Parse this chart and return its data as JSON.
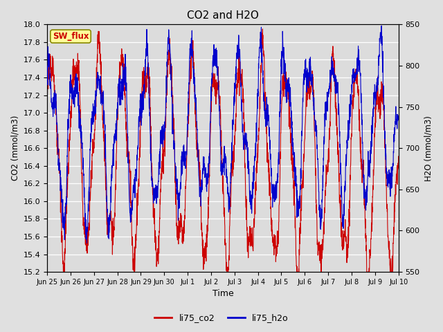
{
  "title": "CO2 and H2O",
  "xlabel": "Time",
  "ylabel_left": "CO2 (mmol/m3)",
  "ylabel_right": "H2O (mmol/m3)",
  "ylim_left": [
    15.2,
    18.0
  ],
  "ylim_right": [
    550,
    850
  ],
  "yticks_left": [
    15.2,
    15.4,
    15.6,
    15.8,
    16.0,
    16.2,
    16.4,
    16.6,
    16.8,
    17.0,
    17.2,
    17.4,
    17.6,
    17.8,
    18.0
  ],
  "yticks_right": [
    550,
    600,
    650,
    700,
    750,
    800,
    850
  ],
  "xtick_labels": [
    "Jun 25",
    "Jun 26",
    "Jun 27",
    "Jun 28",
    "Jun 29",
    "Jun 30",
    "Jul 1",
    "Jul 2",
    "Jul 3",
    "Jul 4",
    "Jul 5",
    "Jul 6",
    "Jul 7",
    "Jul 8",
    "Jul 9",
    "Jul 10"
  ],
  "figure_bg": "#e0e0e0",
  "plot_bg": "#dcdcdc",
  "grid_color": "#ffffff",
  "co2_color": "#cc0000",
  "h2o_color": "#0000cc",
  "legend_entries": [
    "li75_co2",
    "li75_h2o"
  ],
  "sw_flux_label": "SW_flux",
  "sw_flux_bg": "#ffff99",
  "sw_flux_border": "#888800",
  "sw_flux_text_color": "#cc0000",
  "linewidth": 0.8
}
